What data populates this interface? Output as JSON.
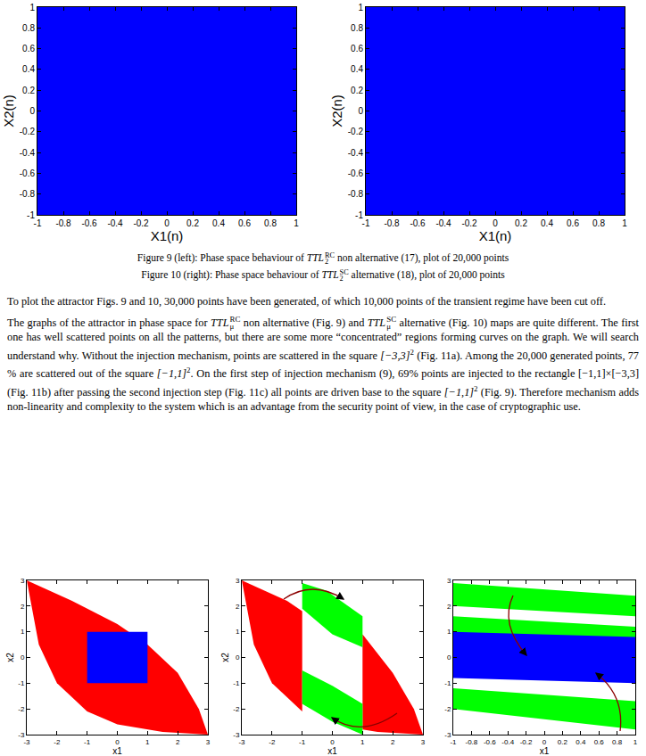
{
  "chart_data": [
    {
      "type": "region",
      "x_label": "X1(n)",
      "y_label": "X2(n)",
      "xlim": [
        -1,
        1
      ],
      "ylim": [
        -1,
        1
      ],
      "xticks": [
        -1,
        -0.8,
        -0.6,
        -0.4,
        -0.2,
        0,
        0.2,
        0.4,
        0.6,
        0.8,
        1
      ],
      "yticks": [
        -1,
        -0.8,
        -0.6,
        -0.4,
        -0.2,
        0,
        0.2,
        0.4,
        0.6,
        0.8,
        1
      ],
      "grid": false,
      "series": [
        {
          "color": "#0000ff",
          "x": [
            -1,
            1,
            1,
            -1
          ],
          "y": [
            -1,
            -1,
            1,
            1
          ]
        }
      ]
    },
    {
      "type": "region",
      "x_label": "X1(n)",
      "y_label": "X2(n)",
      "xlim": [
        -1,
        1
      ],
      "ylim": [
        -1,
        1
      ],
      "xticks": [
        -1,
        -0.8,
        -0.6,
        -0.4,
        -0.2,
        0,
        0.2,
        0.4,
        0.6,
        0.8,
        1
      ],
      "yticks": [
        -1,
        -0.8,
        -0.6,
        -0.4,
        -0.2,
        0,
        0.2,
        0.4,
        0.6,
        0.8,
        1
      ],
      "grid": false,
      "series": [
        {
          "color": "#0000ff",
          "x": [
            -1,
            1,
            1,
            -1
          ],
          "y": [
            -1,
            -1,
            1,
            1
          ]
        }
      ]
    },
    {
      "type": "region",
      "x_label": "x1",
      "y_label": "x2",
      "xlim": [
        -3,
        3
      ],
      "ylim": [
        -3,
        3
      ],
      "xticks": [
        -3,
        -2,
        -1,
        0,
        1,
        2,
        3
      ],
      "yticks": [
        -3,
        -2,
        -1,
        0,
        1,
        2,
        3
      ],
      "grid": false,
      "series": [
        {
          "color": "#ff0000",
          "x": [
            -3,
            -1.5,
            0,
            1,
            2,
            2.7,
            3,
            1.5,
            0,
            -1,
            -2,
            -2.6
          ],
          "y": [
            3,
            2.2,
            1.3,
            0.5,
            -0.6,
            -2,
            -3,
            -2.9,
            -2.6,
            -2.1,
            -1,
            0.5
          ]
        },
        {
          "color": "#0000ff",
          "x": [
            -1,
            1,
            1,
            -1
          ],
          "y": [
            -1,
            -1,
            1,
            1
          ]
        }
      ]
    },
    {
      "type": "region",
      "x_label": "x1",
      "y_label": "x2",
      "xlim": [
        -3,
        3
      ],
      "ylim": [
        -3,
        3
      ],
      "xticks": [
        -3,
        -2,
        -1,
        0,
        1,
        2,
        3
      ],
      "yticks": [
        -3,
        -2,
        -1,
        0,
        1,
        2,
        3
      ],
      "grid": false,
      "series": [
        {
          "color": "#ff0000",
          "x": [
            -3,
            -1.5,
            -1,
            -1,
            -2,
            -2.6
          ],
          "y": [
            3,
            2.2,
            1.8,
            -2.1,
            -1,
            0.5
          ]
        },
        {
          "color": "#ff0000",
          "x": [
            1,
            2,
            2.7,
            3,
            1.5,
            1
          ],
          "y": [
            0.9,
            -0.6,
            -2,
            -3,
            -2.9,
            -2.8
          ]
        },
        {
          "color": "#00ff00",
          "x": [
            -1,
            -0.2,
            1,
            1,
            0,
            -1
          ],
          "y": [
            2.9,
            2.6,
            1.6,
            0.4,
            0.9,
            1.9
          ]
        },
        {
          "color": "#00ff00",
          "x": [
            -1,
            0,
            1,
            1,
            0,
            -1
          ],
          "y": [
            -0.5,
            -1.1,
            -1.8,
            -3,
            -2.5,
            -1.8
          ]
        }
      ]
    },
    {
      "type": "region",
      "x_label": "x1",
      "xlim": [
        -1,
        1
      ],
      "ylim": [
        -3,
        3
      ],
      "xticks": [
        -1,
        -0.8,
        -0.6,
        -0.4,
        -0.2,
        0,
        0.2,
        0.4,
        0.6,
        0.8,
        1
      ],
      "yticks": [
        -3,
        -2,
        -1,
        0,
        1,
        2,
        3
      ],
      "grid": false,
      "series": [
        {
          "color": "#00ff00",
          "x": [
            -1,
            1,
            1,
            -1
          ],
          "y": [
            2.9,
            2.4,
            1.6,
            2.0
          ]
        },
        {
          "color": "#00ff00",
          "x": [
            -1,
            1,
            1,
            -1
          ],
          "y": [
            1.6,
            1.2,
            0.5,
            0.9
          ]
        },
        {
          "color": "#0000ff",
          "x": [
            -1,
            1,
            1,
            -1
          ],
          "y": [
            1.0,
            0.8,
            -1.0,
            -0.8
          ]
        },
        {
          "color": "#00ff00",
          "x": [
            -1,
            1,
            1,
            -1
          ],
          "y": [
            -1.2,
            -1.7,
            -2.8,
            -2.0
          ]
        }
      ]
    }
  ],
  "captions": [
    [
      "Figure 9 (left): Phase space behaviour of ",
      {
        "base": "TTL",
        "sup": "RC",
        "sub": "2"
      },
      "  non alternative (17), plot of 20,000 points"
    ],
    [
      "Figure 10 (right): Phase space behaviour of ",
      {
        "base": "TTL",
        "sup": "SC",
        "sub": "2"
      },
      "  alternative (18), plot of 20,000 points"
    ]
  ],
  "paragraphs": [
    [
      "To plot the attractor Figs. 9 and 10, 30,000 points have been generated, of which 10,000 points of the transient regime have been cut off."
    ],
    [
      "The graphs of the attractor in phase space for ",
      {
        "base": "TTL",
        "sup": "RC",
        "sub": "μ"
      },
      "  non alternative (Fig. 9) and ",
      {
        "base": "TTL",
        "sup": "SC",
        "sub": "μ"
      },
      "  alternative (Fig. 10) maps are quite different. The first one has well scattered points on all the patterns, but there are some more “concentrated” regions forming curves on the graph. We will search understand why. Without the injection mechanism, points are scattered in the square ",
      {
        "base": "[−3,3]",
        "sup": "2"
      },
      " (Fig. 11a). Among the 20,000 generated points, 77 % are scattered out of the square ",
      {
        "base": "[−1,1]",
        "sup": "2"
      },
      ". On the first step of injection mechanism (9), 69% points are injected to the rectangle [−1,1]×[−3,3] (Fig. 11b) after passing the second injection step (Fig. 11c) all points are driven base to the square ",
      {
        "base": "[−1,1]",
        "sup": "2"
      },
      " (Fig. 9). Therefore mechanism adds non-linearity and complexity to the system which is an advantage from the security point of view, in the case of cryptographic use."
    ]
  ]
}
